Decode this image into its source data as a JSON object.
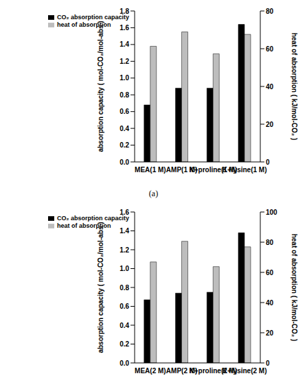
{
  "chart_data": [
    {
      "type": "bar",
      "caption": "(a)",
      "categories": [
        "MEA(1 M)",
        "AMP(1 M)",
        "K+proline(1 M)",
        "K+lysine(1 M)"
      ],
      "series": [
        {
          "name": "CO₂ absorption capacity",
          "color": "#000000",
          "values": [
            0.68,
            0.88,
            0.88,
            1.64
          ]
        },
        {
          "name": "heat of absorption",
          "color": "#bdbdbd",
          "values": [
            61.3,
            68.9,
            57.3,
            67.6
          ],
          "axis": "y2"
        }
      ],
      "y_label": "absorption capacity ( mol-CO₂/mol-abs )",
      "y2_label": "heat of absorption ( kJ/mol-CO₂ )",
      "ylim": [
        0,
        1.8
      ],
      "yticks": [
        {
          "value": 0,
          "label": "0.0"
        },
        0.2,
        0.4,
        0.6,
        0.8,
        {
          "value": 1,
          "label": "1.0"
        },
        1.2,
        1.4,
        1.6,
        1.8
      ],
      "y2lim": [
        0,
        80
      ],
      "y2ticks": [
        0,
        20,
        40,
        60,
        80
      ],
      "legend": "upper left"
    },
    {
      "type": "bar",
      "categories": [
        "MEA(2 M)",
        "AMP(2 M)",
        "K+proline(2 M)",
        "K+lysine(2 M)"
      ],
      "series": [
        {
          "name": "CO₂ absorption capacity",
          "color": "#000000",
          "values": [
            0.67,
            0.74,
            0.75,
            1.38
          ]
        },
        {
          "name": "heat of absorption",
          "color": "#bdbdbd",
          "values": [
            66.9,
            80.6,
            63.8,
            76.9
          ],
          "axis": "y2"
        }
      ],
      "y_label": "absorption capacity ( mol-CO₂/mol-abs )",
      "y2_label": "heat of absorption ( kJ/mol-CO₂ )",
      "ylim": [
        0,
        1.6
      ],
      "yticks": [
        {
          "value": 0,
          "label": "0.0"
        },
        0.2,
        0.4,
        0.6,
        0.8,
        {
          "value": 1,
          "label": "1.0"
        },
        1.2,
        1.4,
        1.6
      ],
      "y2lim": [
        0,
        100
      ],
      "y2ticks": [
        0,
        20,
        40,
        60,
        80,
        100
      ],
      "legend": "upper left"
    }
  ]
}
